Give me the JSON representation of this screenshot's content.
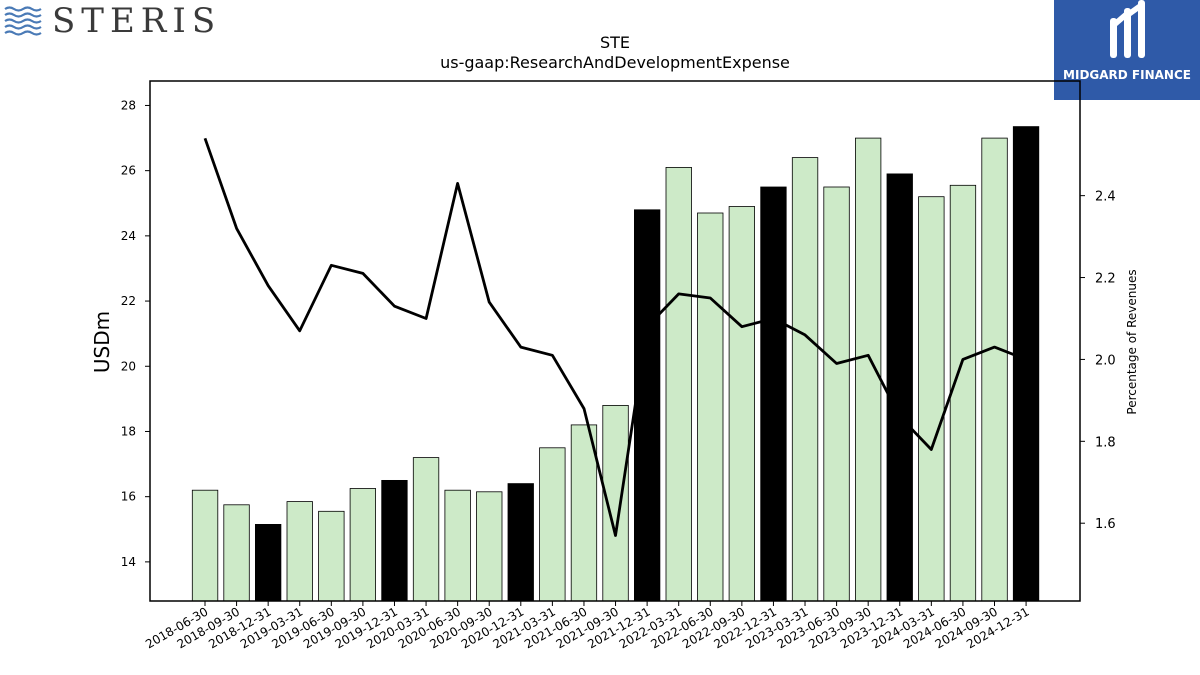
{
  "logos": {
    "left_brand": "STERIS",
    "right_brand": "MIDGARD FINANCE"
  },
  "colors": {
    "bar_light": "#cdeac8",
    "bar_dark": "#000000",
    "line": "#000000",
    "right_logo_bg": "#2f5aa8",
    "left_logo_waves": "#4a7ab6"
  },
  "chart_data": {
    "type": "bar",
    "title": "STE",
    "subtitle": "us-gaap:ResearchAndDevelopmentExpense",
    "ylabel": "USDm",
    "y2label": "Percentage of Revenues",
    "ylim": [
      12.8,
      28.75
    ],
    "y2lim": [
      1.41,
      2.68
    ],
    "yticks": [
      14,
      16,
      18,
      20,
      22,
      24,
      26,
      28
    ],
    "y2ticks": [
      1.6,
      1.8,
      2.0,
      2.2,
      2.4
    ],
    "categories": [
      "2018-06-30",
      "2018-09-30",
      "2018-12-31",
      "2019-03-31",
      "2019-06-30",
      "2019-09-30",
      "2019-12-31",
      "2020-03-31",
      "2020-06-30",
      "2020-09-30",
      "2020-12-31",
      "2021-03-31",
      "2021-06-30",
      "2021-09-30",
      "2021-12-31",
      "2022-03-31",
      "2022-06-30",
      "2022-09-30",
      "2022-12-31",
      "2023-03-31",
      "2023-06-30",
      "2023-09-30",
      "2023-12-31",
      "2024-03-31",
      "2024-06-30",
      "2024-09-30",
      "2024-12-31"
    ],
    "series": [
      {
        "kind": "bar",
        "values": [
          16.2,
          15.75,
          15.15,
          15.85,
          15.55,
          16.25,
          16.5,
          17.2,
          16.2,
          16.15,
          16.4,
          17.5,
          18.2,
          18.8,
          24.8,
          26.1,
          24.7,
          24.9,
          25.5,
          26.4,
          25.5,
          27.0,
          25.9,
          25.2,
          25.55,
          27.0,
          27.35
        ],
        "highlight": [
          false,
          false,
          true,
          false,
          false,
          false,
          true,
          false,
          false,
          false,
          true,
          false,
          false,
          false,
          true,
          false,
          false,
          false,
          true,
          false,
          false,
          false,
          true,
          false,
          false,
          false,
          true
        ]
      },
      {
        "kind": "line",
        "axis": "right",
        "values": [
          2.54,
          2.32,
          2.18,
          2.07,
          2.23,
          2.21,
          2.13,
          2.1,
          2.43,
          2.14,
          2.03,
          2.01,
          1.88,
          1.57,
          2.08,
          2.16,
          2.15,
          2.08,
          2.1,
          2.06,
          1.99,
          2.01,
          1.86,
          1.78,
          2.0,
          2.03,
          2.0
        ]
      }
    ]
  }
}
